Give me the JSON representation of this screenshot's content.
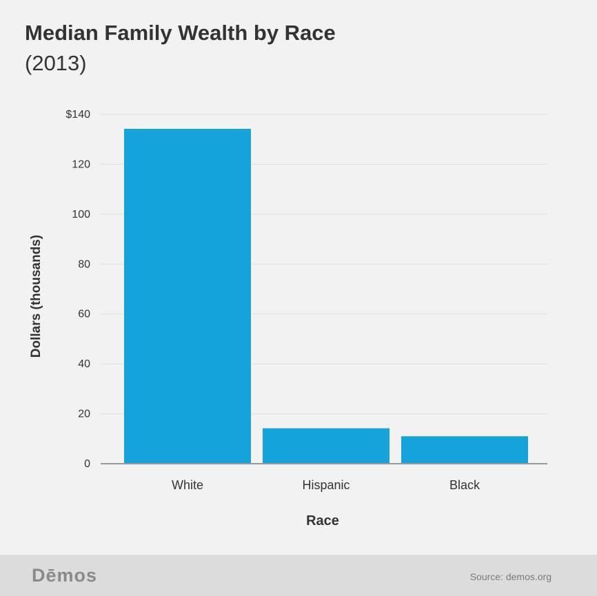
{
  "chart_data": {
    "type": "bar",
    "title": "Median Family Wealth by Race",
    "subtitle": "(2013)",
    "categories": [
      "White",
      "Hispanic",
      "Black"
    ],
    "values": [
      134.2,
      14.2,
      11.0
    ],
    "xlabel": "Race",
    "ylabel": "Dollars (thousands)",
    "ylim": [
      0,
      140
    ],
    "yticks": [
      0,
      20,
      40,
      60,
      80,
      100,
      120,
      140
    ],
    "ytick_labels": [
      "0",
      "20",
      "40",
      "60",
      "80",
      "100",
      "120",
      "$140"
    ],
    "grid": true,
    "bar_color": "#16a3dc"
  },
  "footer": {
    "logo": "Dēmos",
    "source": "Source: demos.org"
  }
}
